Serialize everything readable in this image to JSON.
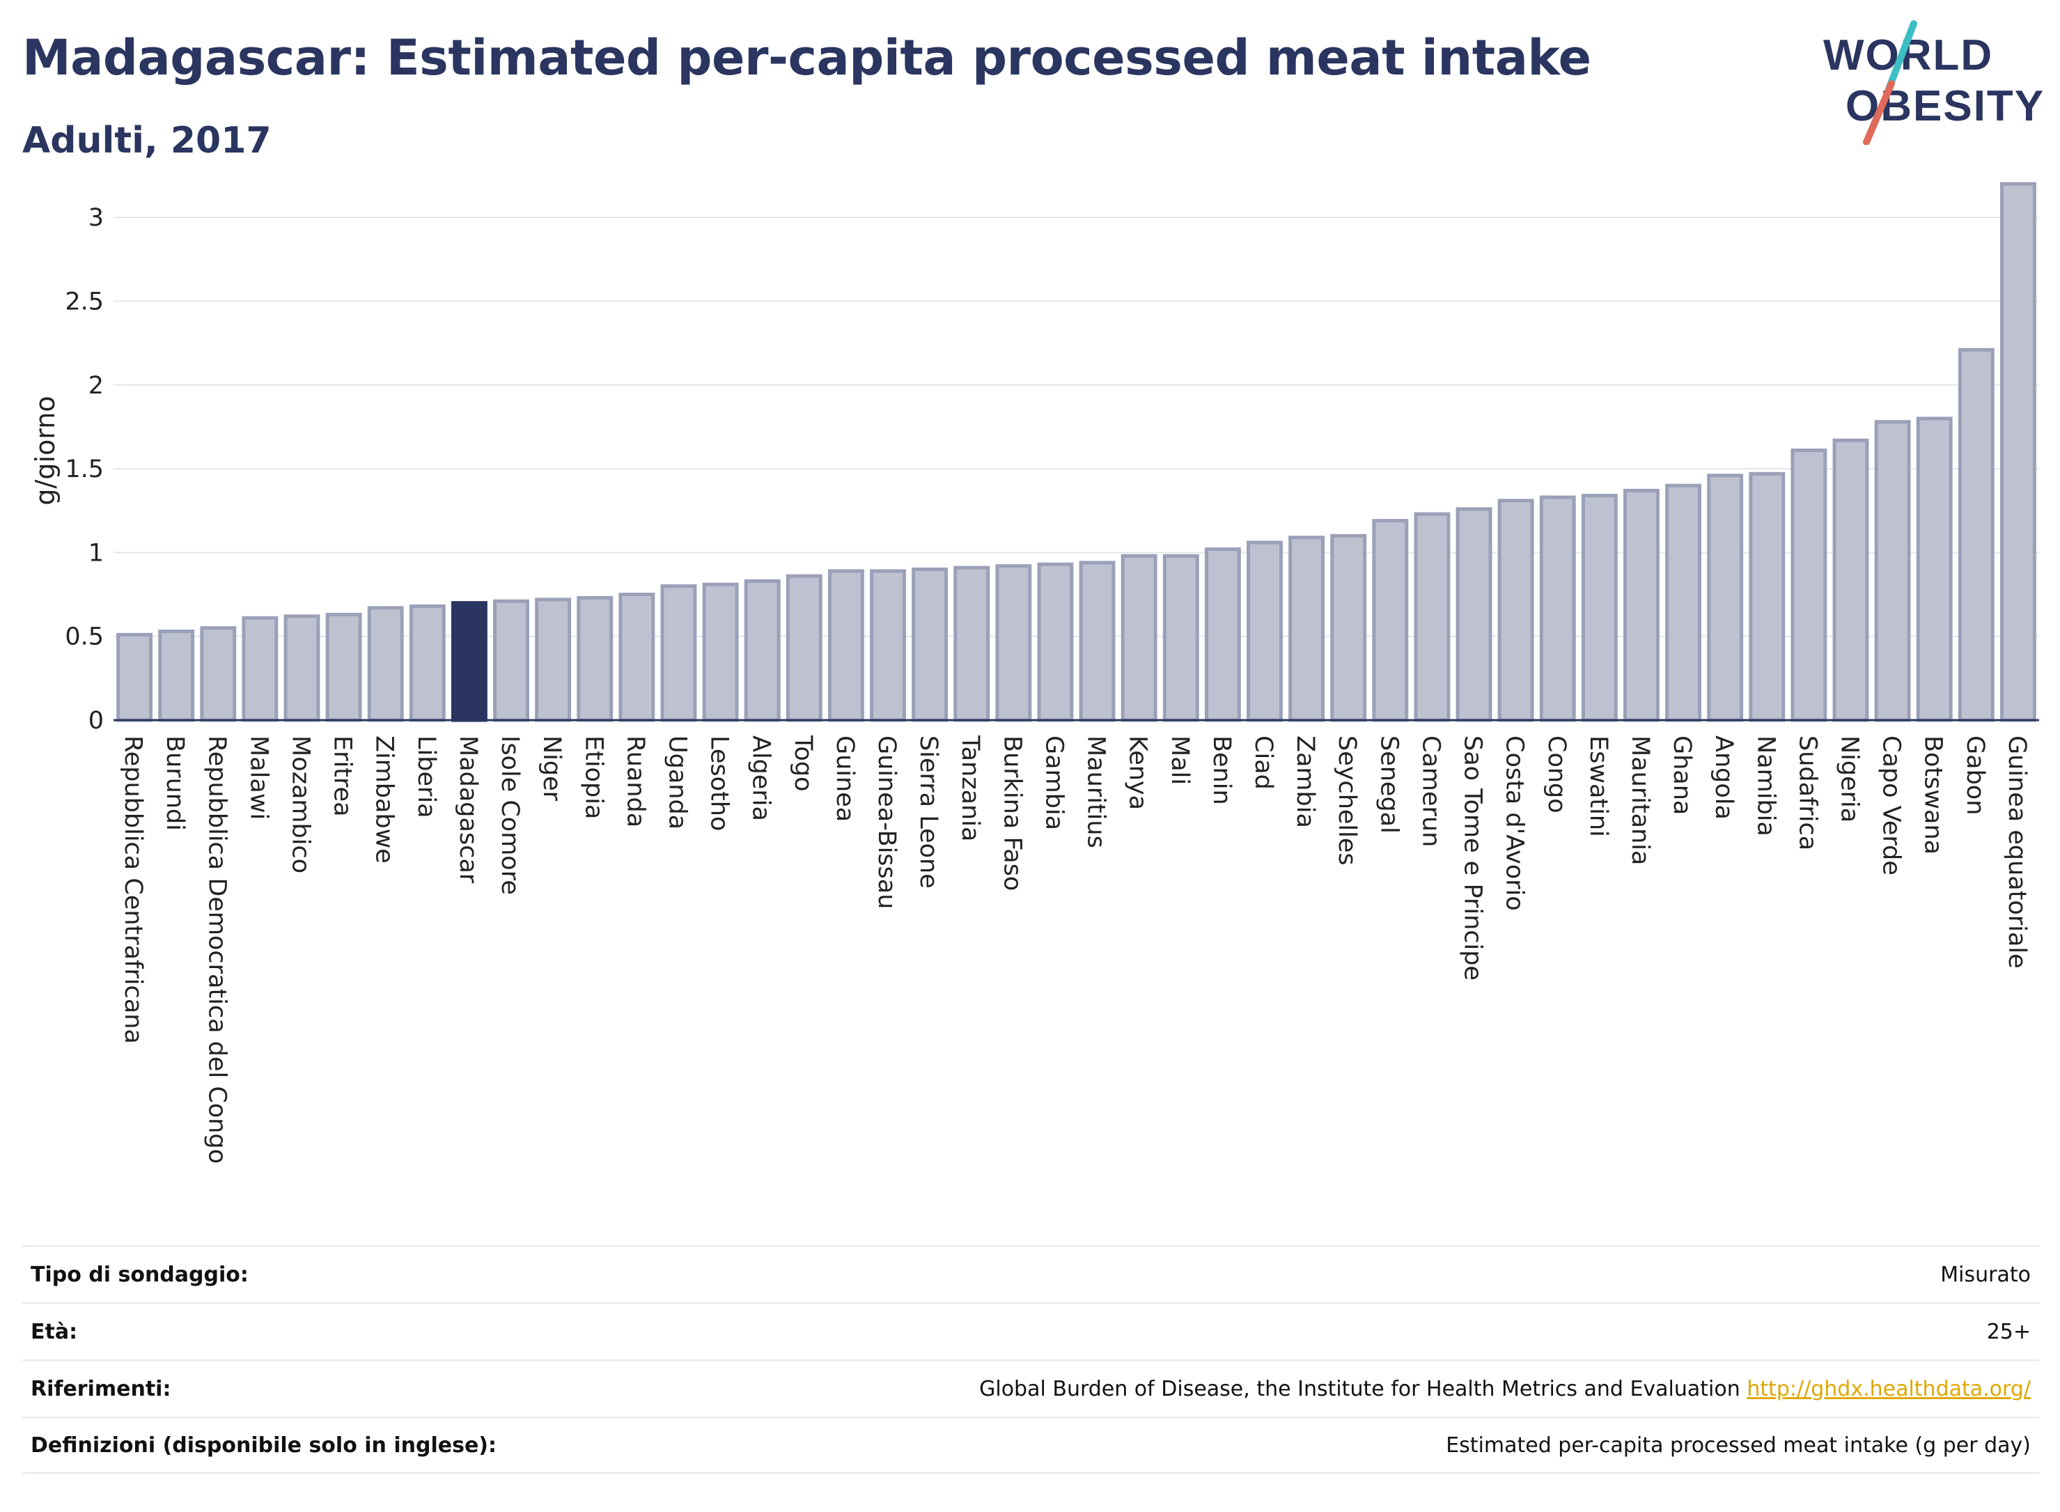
{
  "header": {
    "title": "Madagascar: Estimated per-capita processed meat intake",
    "subtitle": "Adulti, 2017"
  },
  "logo": {
    "line1": "WORLD",
    "line2": "OBESITY",
    "colors": {
      "text": "#2a3560",
      "slash_teal": "#3bbfc4",
      "slash_coral": "#e06a5a"
    }
  },
  "chart_data": {
    "type": "bar",
    "title": "Madagascar: Estimated per-capita processed meat intake",
    "subtitle": "Adulti, 2017",
    "xlabel": "",
    "ylabel": "g/giorno",
    "ylim": [
      0,
      3.3
    ],
    "yticks": [
      0,
      0.5,
      1,
      1.5,
      2,
      2.5,
      3
    ],
    "ytick_labels": [
      "0",
      "0.5",
      "1",
      "1.5",
      "2",
      "2.5",
      "3"
    ],
    "grid": true,
    "highlight": "Madagascar",
    "colors": {
      "bar": "#bec2d0",
      "bar_edge": "#9aa0b8",
      "highlight": "#2a3560",
      "grid": "#e4e6ea",
      "axis": "#2a3560"
    },
    "categories": [
      "Repubblica Centrafricana",
      "Burundi",
      "Repubblica Democratica del Congo",
      "Malawi",
      "Mozambico",
      "Eritrea",
      "Zimbabwe",
      "Liberia",
      "Madagascar",
      "Isole Comore",
      "Niger",
      "Etiopia",
      "Ruanda",
      "Uganda",
      "Lesotho",
      "Algeria",
      "Togo",
      "Guinea",
      "Guinea-Bissau",
      "Sierra Leone",
      "Tanzania",
      "Burkina Faso",
      "Gambia",
      "Mauritius",
      "Kenya",
      "Mali",
      "Benin",
      "Ciad",
      "Zambia",
      "Seychelles",
      "Senegal",
      "Camerun",
      "Sao Tome e Principe",
      "Costa d'Avorio",
      "Congo",
      "Eswatini",
      "Mauritania",
      "Ghana",
      "Angola",
      "Namibia",
      "Sudafrica",
      "Nigeria",
      "Capo Verde",
      "Botswana",
      "Gabon",
      "Guinea equatoriale"
    ],
    "values": [
      0.51,
      0.53,
      0.55,
      0.61,
      0.62,
      0.63,
      0.67,
      0.68,
      0.7,
      0.71,
      0.72,
      0.73,
      0.75,
      0.8,
      0.81,
      0.83,
      0.86,
      0.89,
      0.89,
      0.9,
      0.91,
      0.92,
      0.93,
      0.94,
      0.98,
      0.98,
      1.02,
      1.06,
      1.09,
      1.1,
      1.19,
      1.23,
      1.26,
      1.31,
      1.33,
      1.34,
      1.37,
      1.4,
      1.46,
      1.47,
      1.61,
      1.67,
      1.78,
      1.8,
      2.21,
      3.2
    ]
  },
  "info": {
    "rows": [
      {
        "key": "Tipo di sondaggio:",
        "value": "Misurato"
      },
      {
        "key": "Età:",
        "value": "25+"
      },
      {
        "key": "Riferimenti:",
        "value": "Global Burden of Disease, the Institute for Health Metrics and Evaluation",
        "link": "http://ghdx.healthdata.org/"
      },
      {
        "key": "Definizioni (disponibile solo in inglese):",
        "value": "Estimated per-capita processed meat intake (g per day)"
      }
    ]
  }
}
